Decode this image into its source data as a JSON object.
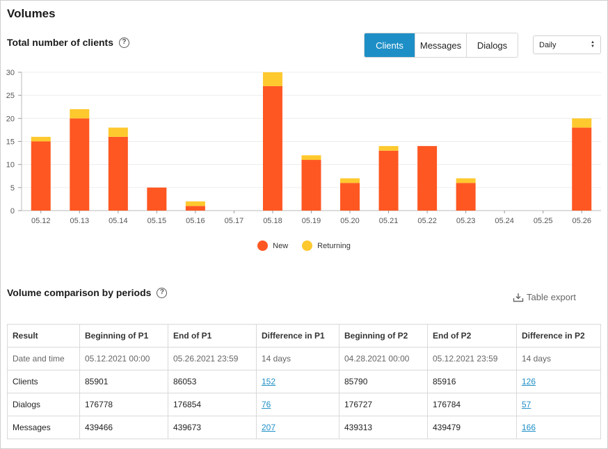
{
  "page_title": "Volumes",
  "chart_section": {
    "title": "Total number of clients",
    "tabs": [
      {
        "label": "Clients",
        "active": true
      },
      {
        "label": "Messages",
        "active": false
      },
      {
        "label": "Dialogs",
        "active": false
      }
    ],
    "period_select": "Daily"
  },
  "colors": {
    "new": "#fe5722",
    "returning": "#fec92e",
    "accent": "#1e8fc6"
  },
  "chart_data": {
    "type": "bar",
    "stacked": true,
    "categories": [
      "05.12",
      "05.13",
      "05.14",
      "05.15",
      "05.16",
      "05.17",
      "05.18",
      "05.19",
      "05.20",
      "05.21",
      "05.22",
      "05.23",
      "05.24",
      "05.25",
      "05.26"
    ],
    "series": [
      {
        "name": "New",
        "values": [
          15,
          20,
          16,
          5,
          1,
          0,
          27,
          11,
          6,
          13,
          14,
          6,
          0,
          0,
          18
        ]
      },
      {
        "name": "Returning",
        "values": [
          1,
          2,
          2,
          0,
          1,
          0,
          3,
          1,
          1,
          1,
          0,
          1,
          0,
          0,
          2
        ]
      }
    ],
    "yticks": [
      0,
      5,
      10,
      15,
      20,
      25,
      30
    ],
    "ylim": [
      0,
      30
    ],
    "grid": true,
    "legend_position": "bottom"
  },
  "comparison": {
    "title": "Volume comparison by periods",
    "export_label": "Table export",
    "headers": [
      "Result",
      "Beginning of P1",
      "End of P1",
      "Difference in P1",
      "Beginning of P2",
      "End of P2",
      "Difference in P2"
    ],
    "rows": [
      [
        "Date and time",
        "05.12.2021 00:00",
        "05.26.2021 23:59",
        "14 days",
        "04.28.2021 00:00",
        "05.12.2021 23:59",
        "14 days"
      ],
      [
        "Clients",
        "85901",
        "86053",
        "152",
        "85790",
        "85916",
        "126"
      ],
      [
        "Dialogs",
        "176778",
        "176854",
        "76",
        "176727",
        "176784",
        "57"
      ],
      [
        "Messages",
        "439466",
        "439673",
        "207",
        "439313",
        "439479",
        "166"
      ]
    ]
  }
}
